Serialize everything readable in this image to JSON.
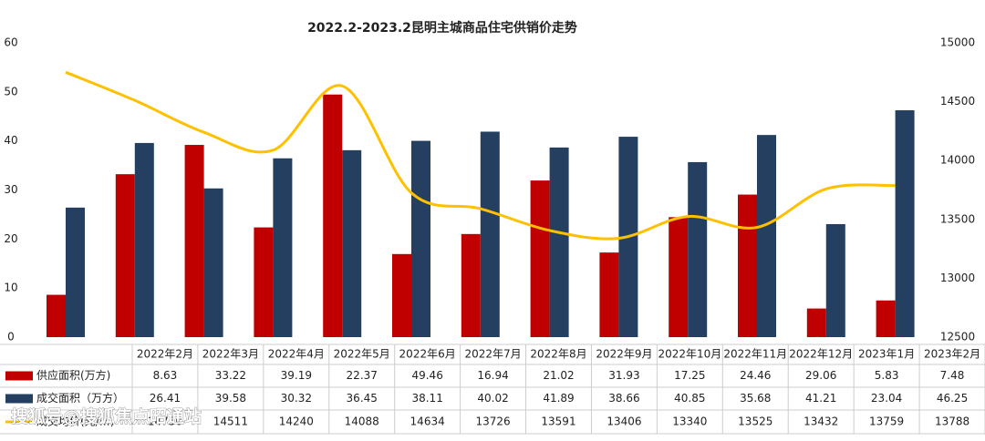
{
  "chart_data": {
    "type": "bar-line-table",
    "title": "2022.2-2023.2昆明主城商品住宅供销价走势",
    "categories": [
      "2022年2月",
      "2022年3月",
      "2022年4月",
      "2022年5月",
      "2022年6月",
      "2022年7月",
      "2022年8月",
      "2022年9月",
      "2022年10月",
      "2022年11月",
      "2022年12月",
      "2023年1月",
      "2023年2月"
    ],
    "series": [
      {
        "name": "供应面积(万方)",
        "color": "#c00000",
        "values": [
          8.63,
          33.22,
          39.19,
          22.37,
          49.46,
          16.94,
          21.02,
          31.93,
          17.25,
          24.46,
          29.06,
          5.83,
          7.48
        ]
      },
      {
        "name": "成交面积（万方）",
        "color": "#243f60",
        "values": [
          26.41,
          39.58,
          30.32,
          36.45,
          38.11,
          40.02,
          41.89,
          38.66,
          40.85,
          35.68,
          41.21,
          23.04,
          46.25
        ]
      },
      {
        "name": "成交均价(元/㎡)",
        "color": "#ffc000",
        "axis": "y2",
        "values": [
          14750,
          14511,
          14240,
          14088,
          14634,
          13726,
          13591,
          13406,
          13340,
          13525,
          13432,
          13759,
          13788
        ]
      }
    ],
    "ylim": [
      0,
      60
    ],
    "yticks": [
      0,
      10,
      20,
      30,
      40,
      50,
      60
    ],
    "y2lim": [
      12500,
      15000
    ],
    "y2ticks": [
      12500,
      13000,
      13500,
      14000,
      14500,
      15000
    ],
    "watermark": "搜狐号@搜狐焦点昭通站"
  }
}
